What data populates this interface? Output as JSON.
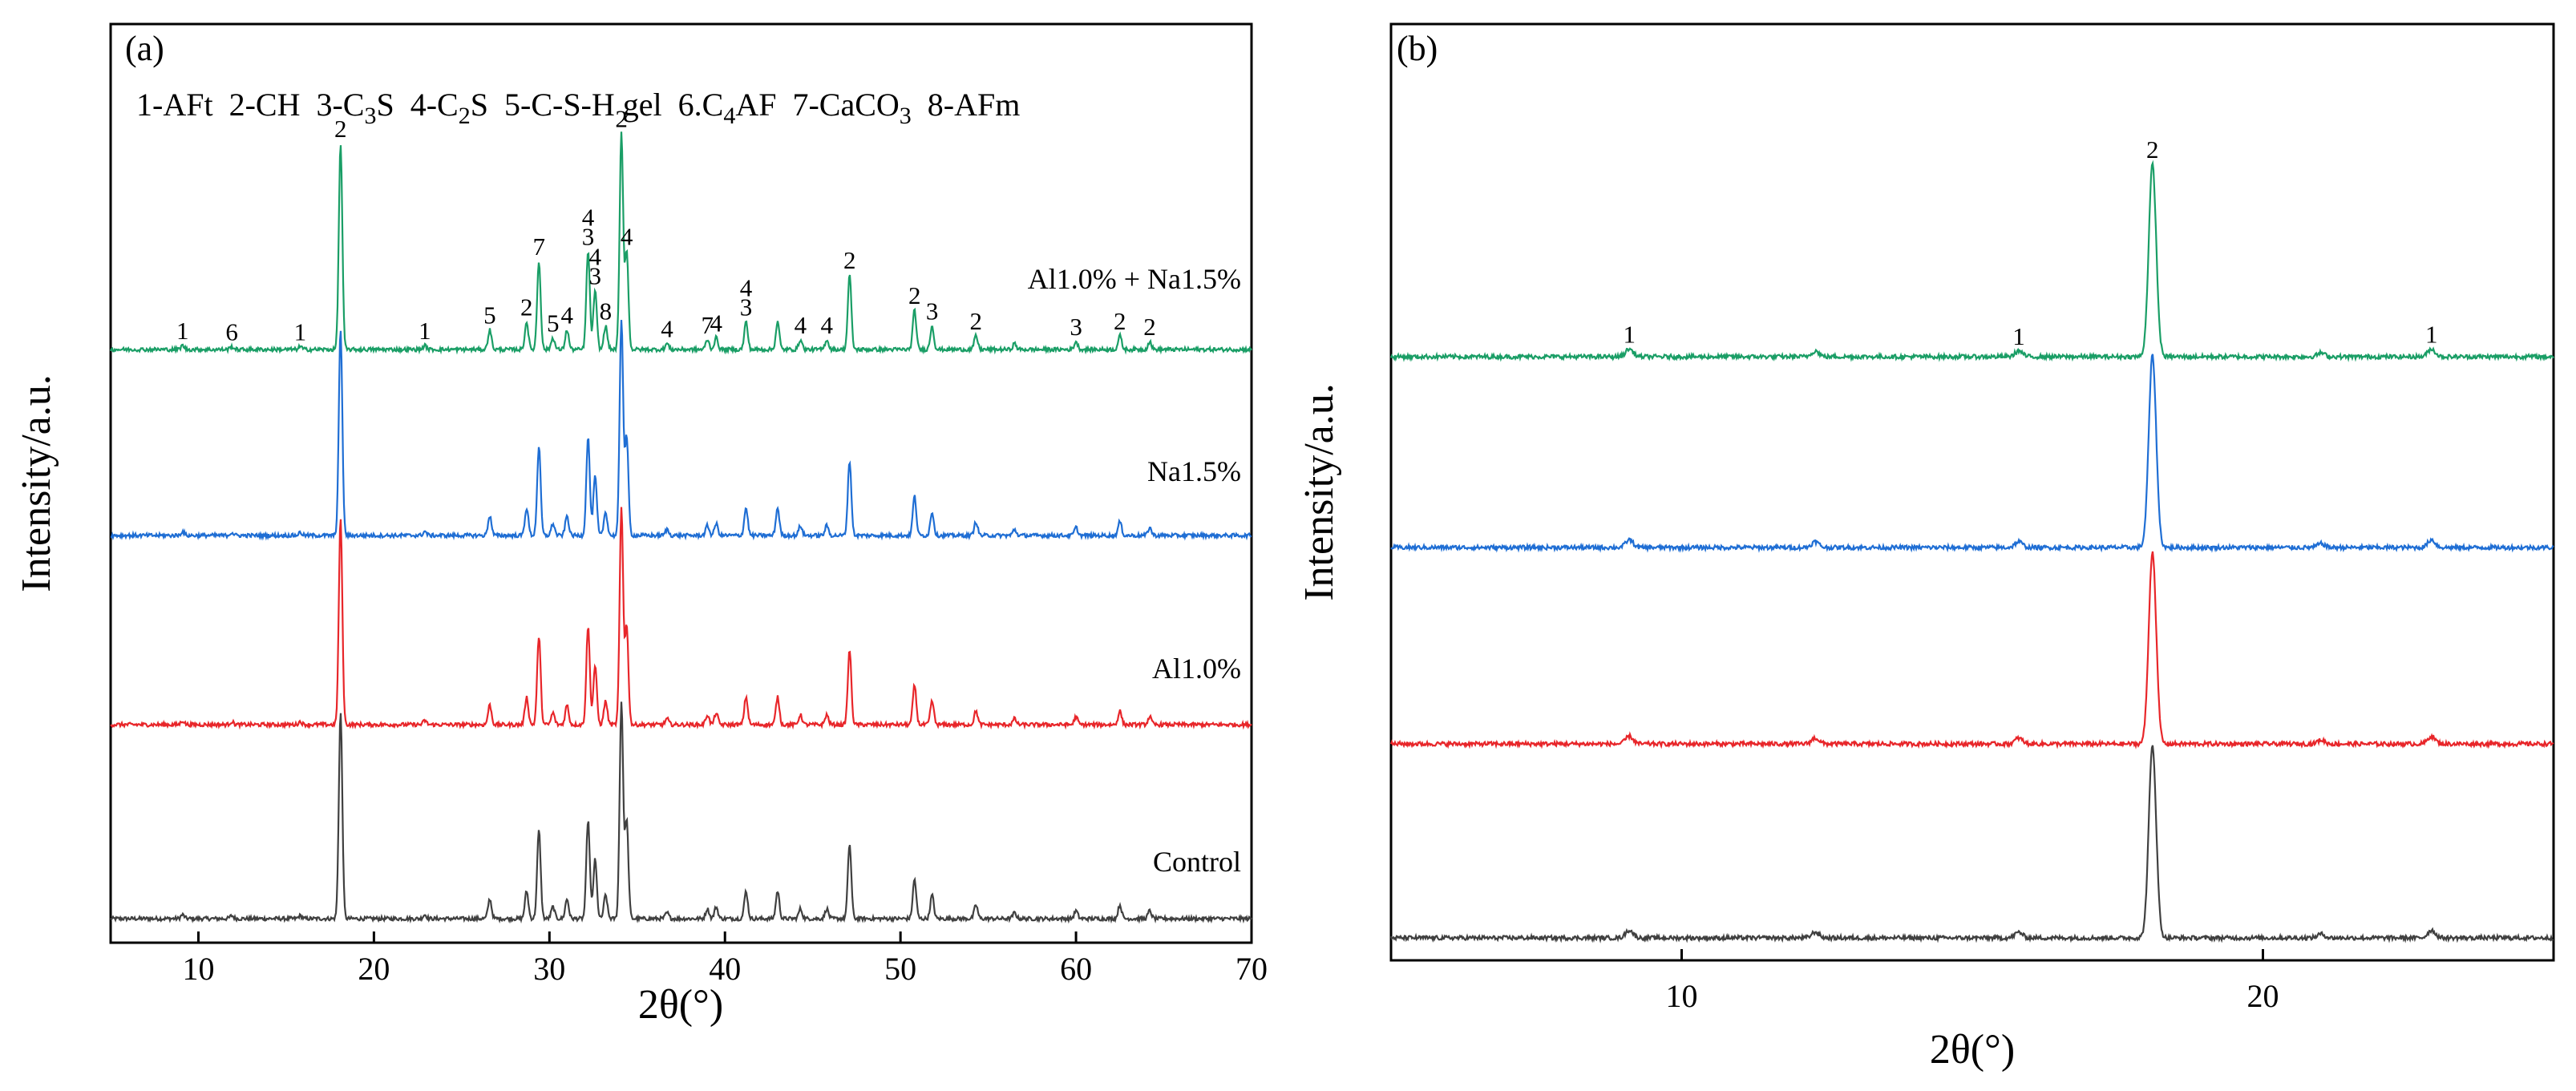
{
  "chart_data": [
    {
      "panel": "(a)",
      "type": "line",
      "xlabel": "2θ(°)",
      "ylabel": "Intensity/a.u.",
      "xlim": [
        5,
        70
      ],
      "xticks": [
        10,
        20,
        30,
        40,
        50,
        60,
        70
      ],
      "xtick_labels": [
        "10",
        "20",
        "30",
        "40",
        "50",
        "60",
        "70"
      ],
      "legend_line": "1-AFt 2-CH 3-C3S 4-C2S 5-C-S-H gel 6.C4AF 7-CaCO3 8-AFm",
      "phase_key": [
        {
          "id": "1",
          "phase": "AFt"
        },
        {
          "id": "2",
          "phase": "CH"
        },
        {
          "id": "3",
          "phase": "C3S"
        },
        {
          "id": "4",
          "phase": "C2S"
        },
        {
          "id": "5",
          "phase": "C-S-H gel"
        },
        {
          "id": "6",
          "phase": "C4AF"
        },
        {
          "id": "7",
          "phase": "CaCO3"
        },
        {
          "id": "8",
          "phase": "AFm"
        }
      ],
      "series": [
        {
          "name": "Control",
          "color": "#404040",
          "baseline": 0.0
        },
        {
          "name": "Al1.0%",
          "color": "#e8262a",
          "baseline": 1.0
        },
        {
          "name": "Na1.5%",
          "color": "#1f6ed4",
          "baseline": 2.0
        },
        {
          "name": "Al1.0% + Na1.5%",
          "color": "#1a9e66",
          "baseline": 3.0
        }
      ],
      "peaks": [
        {
          "x": 9.1,
          "h": 0.02,
          "label": "1"
        },
        {
          "x": 11.9,
          "h": 0.015,
          "label": "6"
        },
        {
          "x": 15.8,
          "h": 0.015,
          "label": "1"
        },
        {
          "x": 18.1,
          "h": 1.05,
          "label": "2"
        },
        {
          "x": 22.9,
          "h": 0.02,
          "label": "1"
        },
        {
          "x": 26.6,
          "h": 0.1,
          "label": "5"
        },
        {
          "x": 28.7,
          "h": 0.14,
          "label": "2"
        },
        {
          "x": 29.4,
          "h": 0.45,
          "label": "7"
        },
        {
          "x": 30.2,
          "h": 0.06,
          "label": "5"
        },
        {
          "x": 31.0,
          "h": 0.1,
          "label": "4"
        },
        {
          "x": 32.2,
          "h": 0.5,
          "label": "4 3"
        },
        {
          "x": 32.6,
          "h": 0.3,
          "label": "4 3"
        },
        {
          "x": 33.2,
          "h": 0.12,
          "label": "8"
        },
        {
          "x": 34.1,
          "h": 1.1,
          "label": "2"
        },
        {
          "x": 34.4,
          "h": 0.5,
          "label": "4"
        },
        {
          "x": 36.7,
          "h": 0.03,
          "label": "4"
        },
        {
          "x": 39.0,
          "h": 0.05,
          "label": "7"
        },
        {
          "x": 39.5,
          "h": 0.06,
          "label": "4"
        },
        {
          "x": 41.2,
          "h": 0.14,
          "label": "4 3"
        },
        {
          "x": 43.0,
          "h": 0.14,
          "label": ""
        },
        {
          "x": 44.3,
          "h": 0.05,
          "label": "4"
        },
        {
          "x": 45.8,
          "h": 0.05,
          "label": "4"
        },
        {
          "x": 47.1,
          "h": 0.38,
          "label": "2"
        },
        {
          "x": 50.8,
          "h": 0.2,
          "label": "2"
        },
        {
          "x": 51.8,
          "h": 0.12,
          "label": "3"
        },
        {
          "x": 54.3,
          "h": 0.07,
          "label": "2"
        },
        {
          "x": 56.5,
          "h": 0.03,
          "label": ""
        },
        {
          "x": 60.0,
          "h": 0.04,
          "label": "3"
        },
        {
          "x": 62.5,
          "h": 0.07,
          "label": "2"
        },
        {
          "x": 64.2,
          "h": 0.04,
          "label": "2"
        }
      ]
    },
    {
      "panel": "(b)",
      "type": "line",
      "xlabel": "2θ(°)",
      "ylabel": "Intensity/a.u.",
      "xlim": [
        5,
        25
      ],
      "xticks": [
        10,
        20
      ],
      "xtick_labels": [
        "10",
        "20"
      ],
      "series": [
        {
          "name": "Control",
          "color": "#404040",
          "baseline": 0.0
        },
        {
          "name": "Al1.0%",
          "color": "#e8262a",
          "baseline": 1.0
        },
        {
          "name": "Na1.5%",
          "color": "#1f6ed4",
          "baseline": 2.0
        },
        {
          "name": "Al1.0% + Na1.5%",
          "color": "#1a9e66",
          "baseline": 3.0
        }
      ],
      "peaks": [
        {
          "x": 9.1,
          "h": 0.04,
          "label": "1"
        },
        {
          "x": 12.3,
          "h": 0.03,
          "label": ""
        },
        {
          "x": 15.8,
          "h": 0.03,
          "label": "1"
        },
        {
          "x": 18.1,
          "h": 1.0,
          "label": "2"
        },
        {
          "x": 21.0,
          "h": 0.02,
          "label": ""
        },
        {
          "x": 22.9,
          "h": 0.04,
          "label": "1"
        }
      ]
    }
  ]
}
